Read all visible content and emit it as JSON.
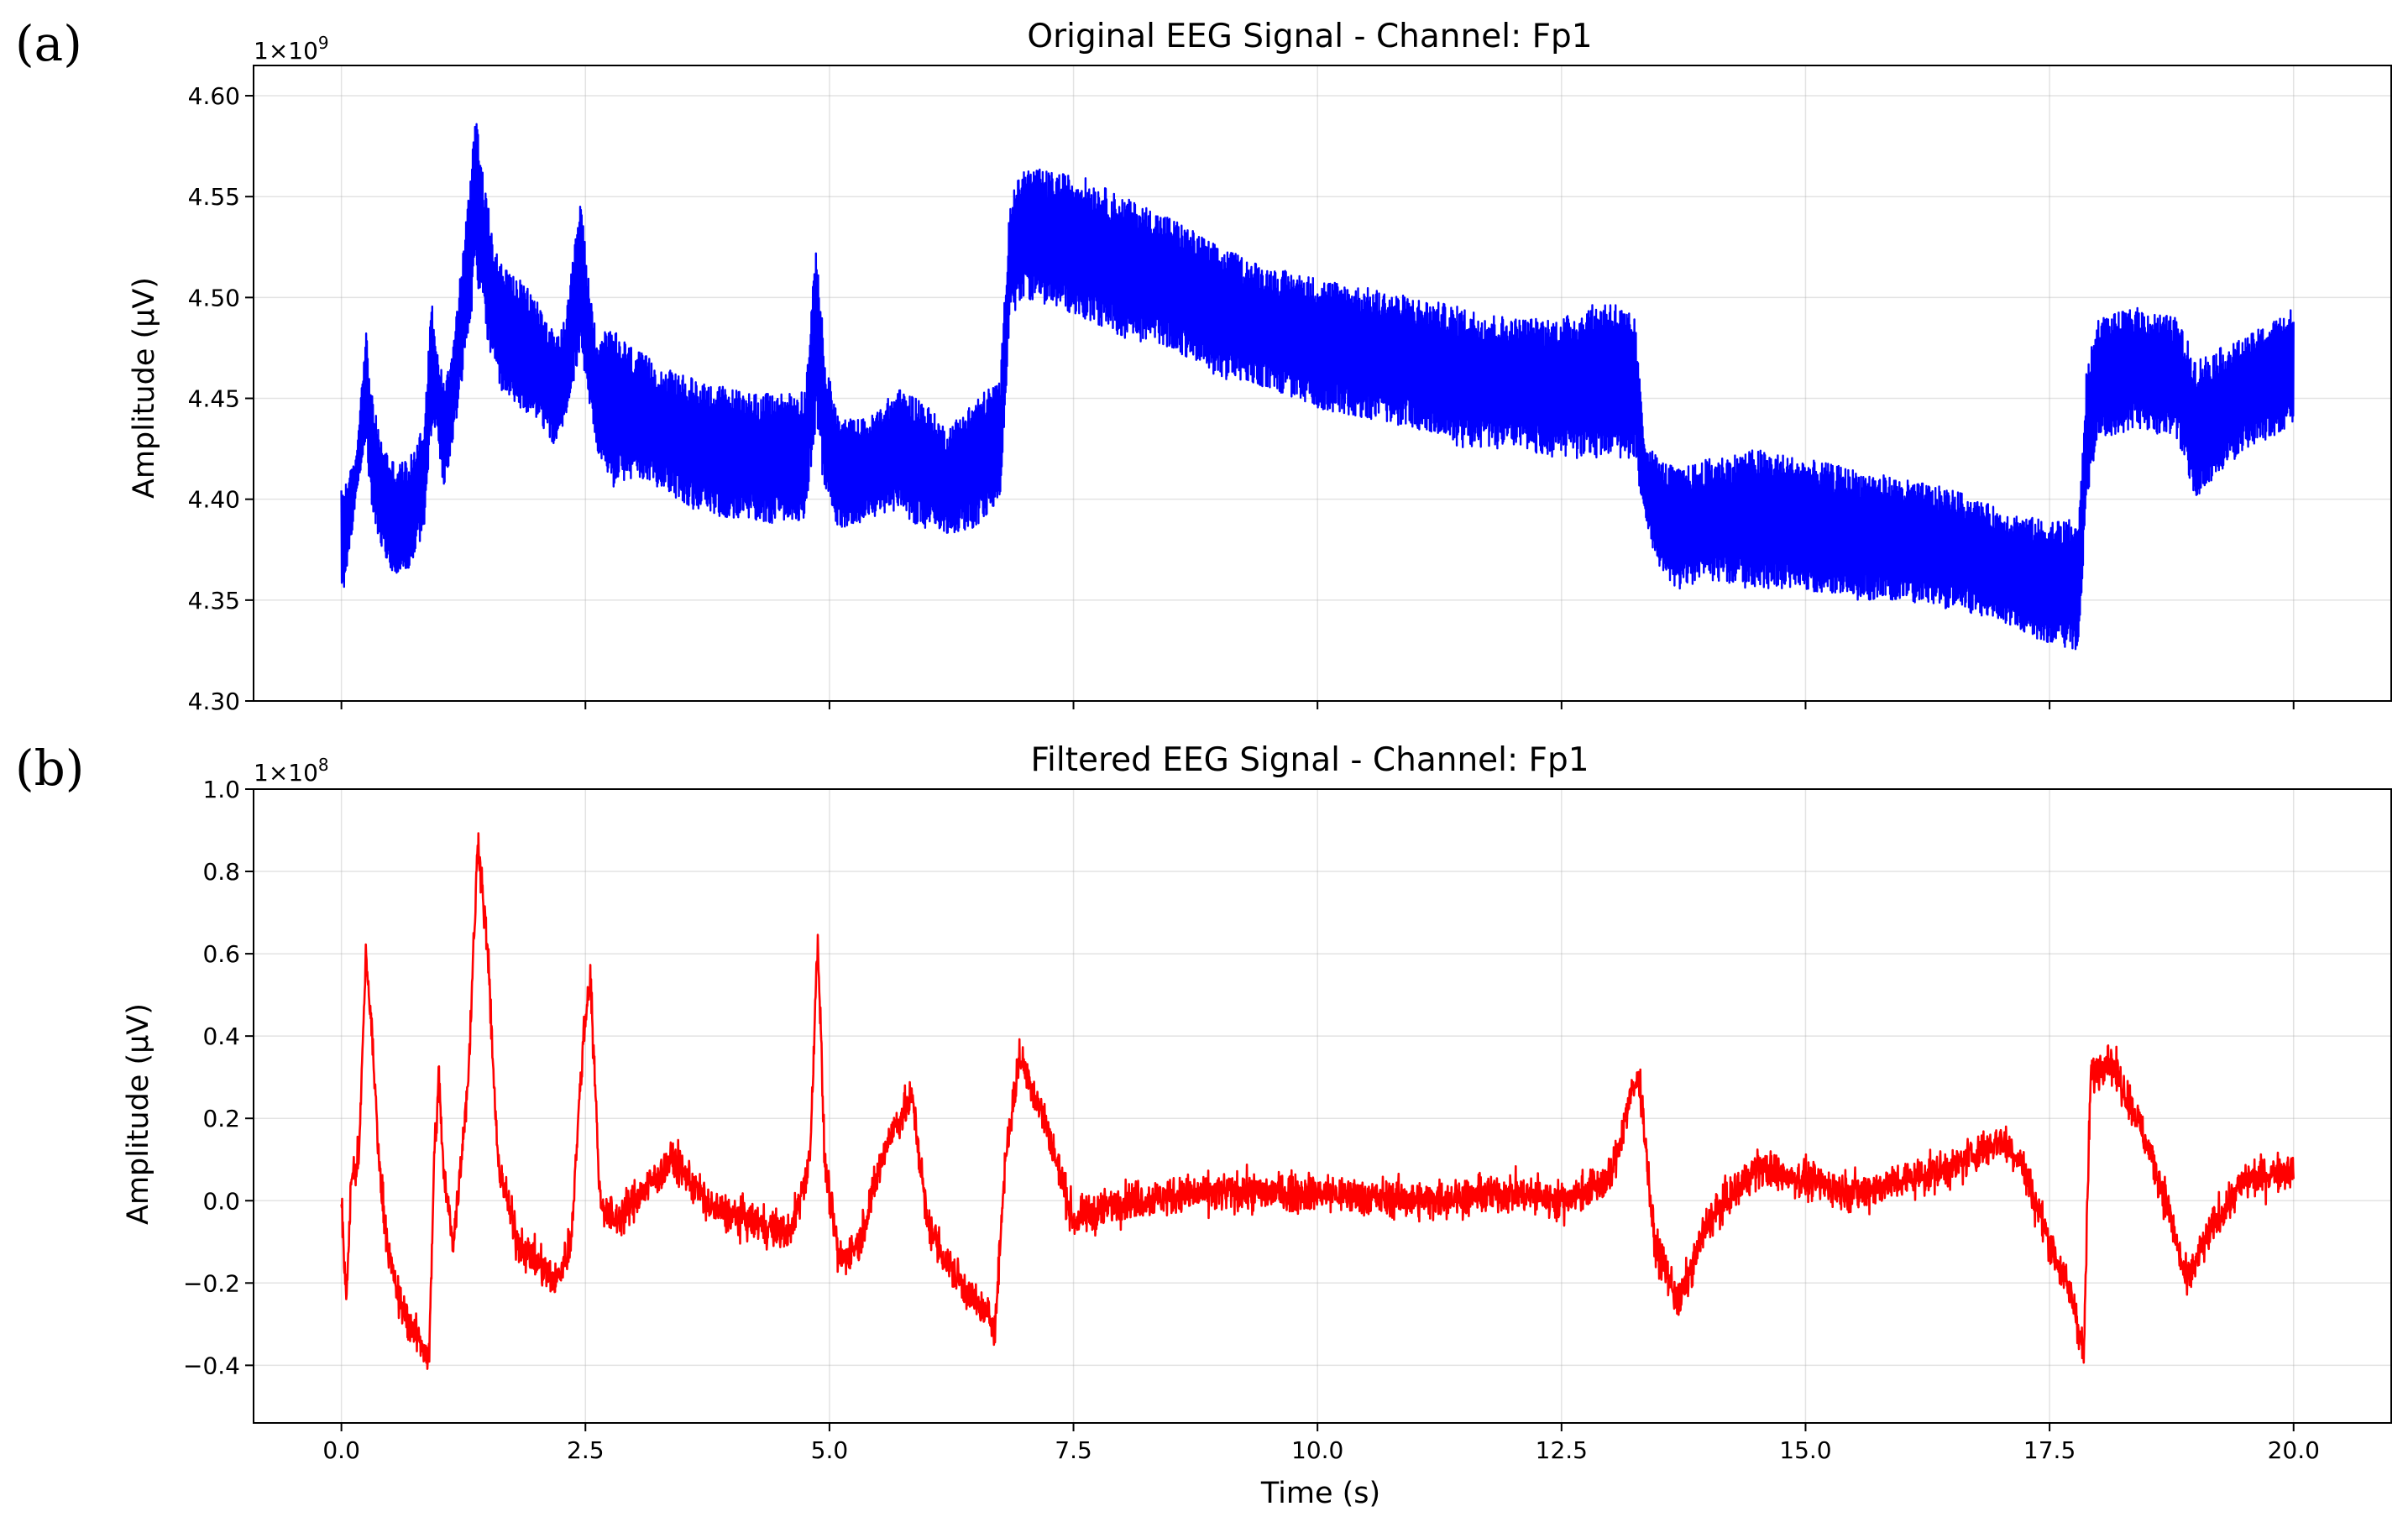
{
  "chart_data": [
    {
      "panel_label": "(a)",
      "type": "line",
      "title": "Original EEG Signal - Channel: Fp1",
      "ylabel": "Amplitude (μV)",
      "xlabel": "",
      "offset_text": "1×10",
      "offset_exp": "9",
      "offset_multiplier": 1000000000,
      "xlim": [
        -0.9,
        21.0
      ],
      "ylim": [
        4.3,
        4.615
      ],
      "xticks": [
        0.0,
        2.5,
        5.0,
        7.5,
        10.0,
        12.5,
        15.0,
        17.5,
        20.0
      ],
      "xtick_labels": [],
      "yticks": [
        4.3,
        4.35,
        4.4,
        4.45,
        4.5,
        4.55,
        4.6
      ],
      "ytick_labels": [
        "4.30",
        "4.35",
        "4.40",
        "4.45",
        "4.50",
        "4.55",
        "4.60"
      ],
      "grid": true,
      "color": "#0000ff",
      "envelope": {
        "x": [
          0.0,
          0.05,
          0.15,
          0.25,
          0.3,
          0.4,
          0.55,
          0.7,
          0.85,
          0.92,
          0.97,
          1.05,
          1.15,
          1.3,
          1.38,
          1.45,
          1.6,
          1.8,
          2.0,
          2.2,
          2.3,
          2.45,
          2.53,
          2.62,
          2.75,
          3.0,
          3.3,
          3.6,
          4.0,
          4.4,
          4.75,
          4.87,
          4.95,
          5.1,
          5.4,
          5.7,
          5.95,
          6.2,
          6.5,
          6.75,
          6.85,
          7.0,
          7.3,
          7.6,
          8.0,
          8.5,
          9.0,
          9.5,
          10.0,
          10.5,
          11.0,
          11.5,
          12.0,
          12.5,
          13.0,
          13.25,
          13.35,
          13.5,
          13.7,
          14.0,
          14.5,
          15.0,
          15.5,
          16.0,
          16.5,
          17.0,
          17.4,
          17.8,
          17.88,
          18.0,
          18.4,
          18.8,
          19.0,
          19.5,
          20.0
        ],
        "lower": [
          4.352,
          4.36,
          4.4,
          4.43,
          4.4,
          4.375,
          4.362,
          4.365,
          4.385,
          4.43,
          4.435,
          4.405,
          4.43,
          4.48,
          4.51,
          4.49,
          4.455,
          4.445,
          4.44,
          4.425,
          4.44,
          4.475,
          4.45,
          4.425,
          4.405,
          4.41,
          4.405,
          4.395,
          4.39,
          4.388,
          4.39,
          4.44,
          4.4,
          4.385,
          4.39,
          4.395,
          4.385,
          4.383,
          4.385,
          4.4,
          4.49,
          4.5,
          4.495,
          4.49,
          4.48,
          4.475,
          4.46,
          4.455,
          4.445,
          4.44,
          4.435,
          4.425,
          4.425,
          4.42,
          4.42,
          4.42,
          4.39,
          4.365,
          4.355,
          4.36,
          4.355,
          4.355,
          4.35,
          4.35,
          4.345,
          4.34,
          4.33,
          4.325,
          4.4,
          4.43,
          4.435,
          4.43,
          4.4,
          4.425,
          4.435
        ],
        "upper": [
          4.405,
          4.41,
          4.42,
          4.487,
          4.455,
          4.43,
          4.418,
          4.42,
          4.44,
          4.502,
          4.475,
          4.46,
          4.48,
          4.55,
          4.6,
          4.56,
          4.52,
          4.51,
          4.5,
          4.48,
          4.49,
          4.55,
          4.51,
          4.48,
          4.485,
          4.475,
          4.465,
          4.46,
          4.455,
          4.452,
          4.455,
          4.53,
          4.47,
          4.44,
          4.44,
          4.455,
          4.45,
          4.435,
          4.45,
          4.46,
          4.55,
          4.565,
          4.562,
          4.56,
          4.55,
          4.54,
          4.525,
          4.515,
          4.51,
          4.505,
          4.5,
          4.495,
          4.49,
          4.49,
          4.5,
          4.49,
          4.43,
          4.42,
          4.415,
          4.42,
          4.425,
          4.42,
          4.415,
          4.41,
          4.405,
          4.395,
          4.39,
          4.39,
          4.465,
          4.49,
          4.495,
          4.49,
          4.47,
          4.48,
          4.495
        ]
      }
    },
    {
      "panel_label": "(b)",
      "type": "line",
      "title": "Filtered EEG Signal - Channel: Fp1",
      "ylabel": "Amplitude (μV)",
      "xlabel": "Time (s)",
      "offset_text": "1×10",
      "offset_exp": "8",
      "offset_multiplier": 100000000,
      "xlim": [
        -0.9,
        21.0
      ],
      "ylim": [
        -0.54,
        1.0
      ],
      "xticks": [
        0.0,
        2.5,
        5.0,
        7.5,
        10.0,
        12.5,
        15.0,
        17.5,
        20.0
      ],
      "xtick_labels": [
        "0.0",
        "2.5",
        "5.0",
        "7.5",
        "10.0",
        "12.5",
        "15.0",
        "17.5",
        "20.0"
      ],
      "yticks": [
        -0.4,
        -0.2,
        0.0,
        0.2,
        0.4,
        0.6,
        0.8,
        1.0
      ],
      "ytick_labels": [
        "−0.4",
        "−0.2",
        "0.0",
        "0.2",
        "0.4",
        "0.6",
        "0.8",
        "1.0"
      ],
      "grid": true,
      "color": "#ff0000",
      "trend": {
        "x": [
          0.0,
          0.05,
          0.1,
          0.18,
          0.25,
          0.3,
          0.4,
          0.5,
          0.6,
          0.75,
          0.9,
          0.95,
          1.0,
          1.05,
          1.15,
          1.3,
          1.4,
          1.5,
          1.6,
          1.8,
          2.0,
          2.2,
          2.35,
          2.48,
          2.55,
          2.65,
          2.8,
          3.0,
          3.4,
          3.8,
          4.2,
          4.6,
          4.8,
          4.88,
          4.95,
          5.1,
          5.3,
          5.6,
          5.85,
          6.0,
          6.2,
          6.5,
          6.7,
          6.8,
          6.95,
          7.2,
          7.5,
          8.0,
          9.0,
          10.0,
          11.0,
          12.0,
          12.5,
          13.0,
          13.2,
          13.3,
          13.45,
          13.7,
          14.0,
          14.5,
          15.0,
          15.5,
          16.0,
          16.5,
          17.0,
          17.2,
          17.5,
          17.75,
          17.85,
          17.92,
          18.1,
          18.4,
          18.7,
          18.9,
          19.2,
          19.5,
          20.0
        ],
        "y": [
          0.0,
          -0.25,
          0.05,
          0.1,
          0.6,
          0.45,
          0.05,
          -0.15,
          -0.25,
          -0.32,
          -0.38,
          0.1,
          0.3,
          0.05,
          -0.1,
          0.3,
          0.88,
          0.6,
          0.1,
          -0.1,
          -0.15,
          -0.2,
          -0.1,
          0.4,
          0.55,
          0.0,
          -0.05,
          0.0,
          0.1,
          -0.02,
          -0.05,
          -0.08,
          0.1,
          0.65,
          0.1,
          -0.15,
          -0.1,
          0.15,
          0.25,
          -0.05,
          -0.15,
          -0.25,
          -0.3,
          0.1,
          0.35,
          0.2,
          -0.05,
          0.0,
          0.02,
          0.02,
          0.0,
          0.02,
          0.0,
          0.05,
          0.25,
          0.3,
          -0.1,
          -0.25,
          -0.05,
          0.08,
          0.05,
          0.02,
          0.05,
          0.08,
          0.15,
          0.1,
          -0.1,
          -0.25,
          -0.38,
          0.3,
          0.35,
          0.2,
          0.0,
          -0.2,
          -0.05,
          0.05,
          0.08
        ]
      }
    }
  ]
}
